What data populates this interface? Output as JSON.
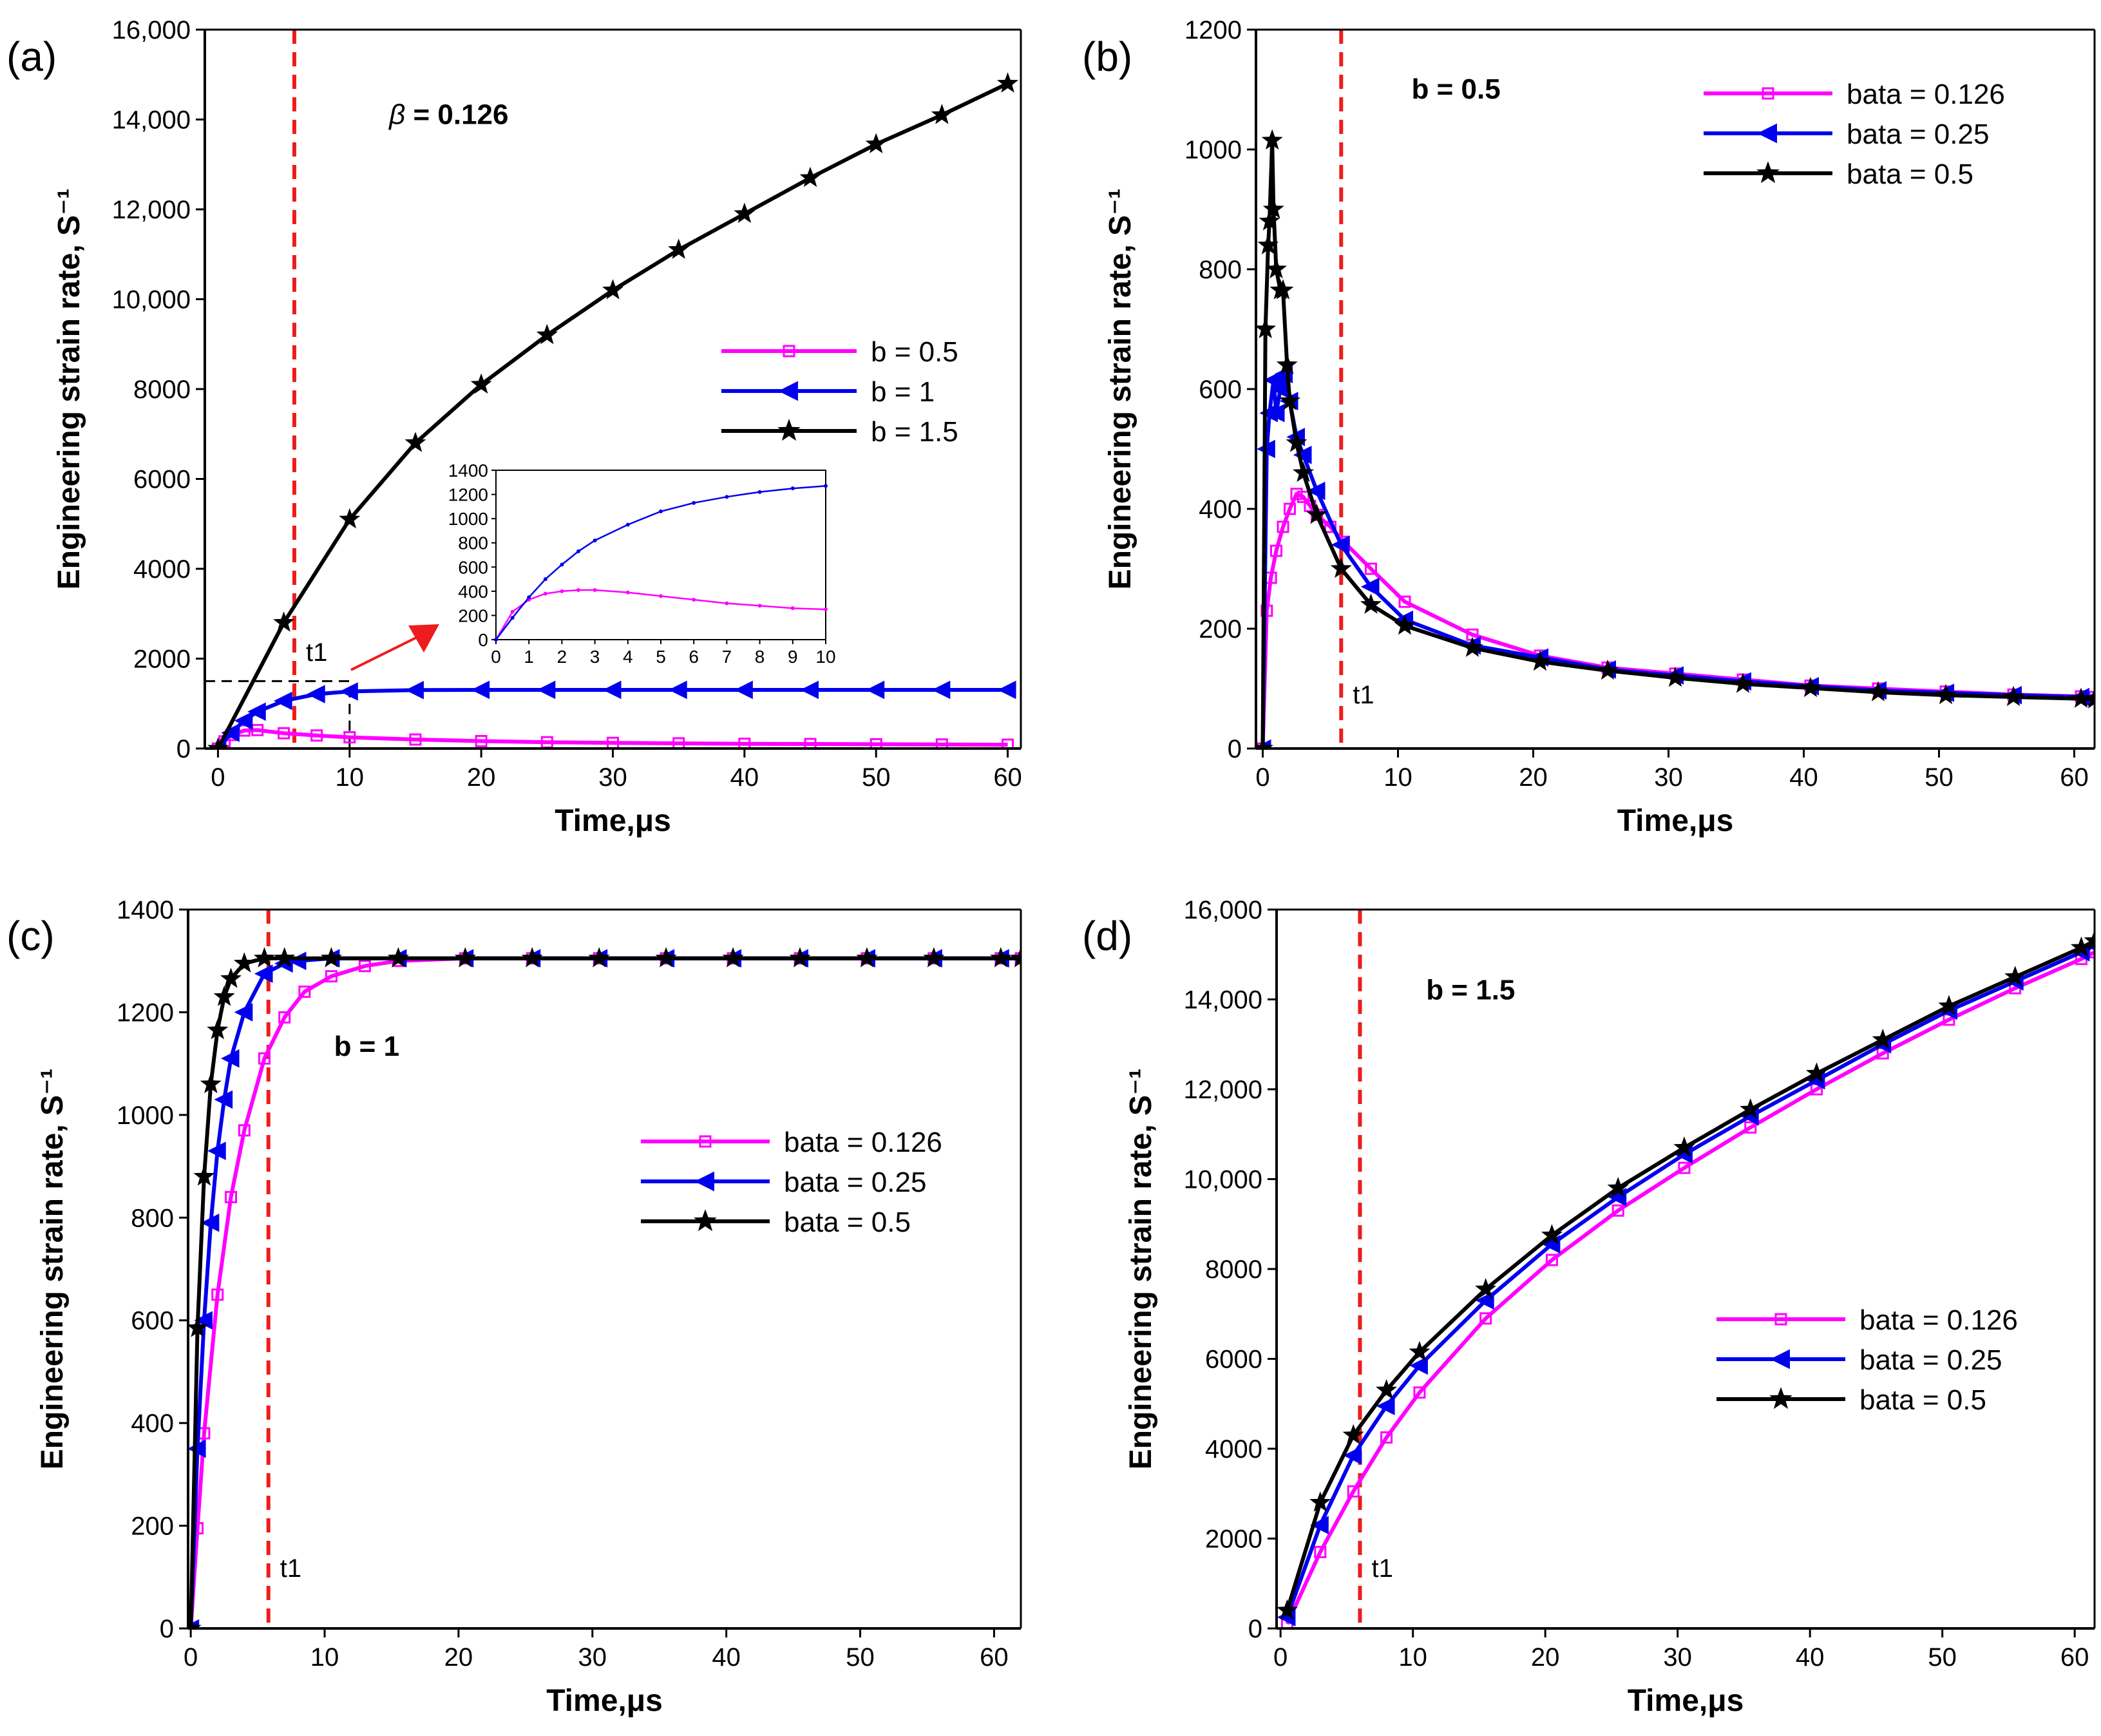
{
  "colors": {
    "magenta": "#ff00ff",
    "blue": "#0000ee",
    "black": "#000000",
    "red_dash": "#ee1c1c"
  },
  "chart_data": [
    {
      "type": "line",
      "panel_label": "(a)",
      "xlabel": "Time,μs",
      "ylabel": "Engineering strain rate, S⁻¹",
      "xlim": [
        -1,
        61
      ],
      "ylim": [
        0,
        16000
      ],
      "xticks": [
        0,
        10,
        20,
        30,
        40,
        50,
        60
      ],
      "xtick_labels": [
        "0",
        "10",
        "20",
        "30",
        "40",
        "50",
        "60"
      ],
      "yticks": [
        0,
        2000,
        4000,
        6000,
        8000,
        10000,
        12000,
        14000,
        16000
      ],
      "ytick_labels": [
        "0",
        "2000",
        "4000",
        "6000",
        "8000",
        "10,000",
        "12,000",
        "14,000",
        "16,000"
      ],
      "annotation": {
        "symbol": "β",
        "text": " = 0.126",
        "x": 13,
        "y": 13900
      },
      "t1": {
        "x": 5.8,
        "label": "t1"
      },
      "legend_position": "center-right",
      "series": [
        {
          "name": "b = 0.5",
          "color": "#ff00ff",
          "marker": "square",
          "x": [
            0,
            0.5,
            1,
            2,
            3,
            5,
            7.5,
            10,
            15,
            20,
            25,
            30,
            35,
            40,
            45,
            50,
            55,
            60
          ],
          "y": [
            0,
            160,
            300,
            400,
            410,
            340,
            290,
            250,
            200,
            165,
            140,
            125,
            115,
            105,
            100,
            95,
            90,
            85
          ]
        },
        {
          "name": "b = 1",
          "color": "#0000ee",
          "marker": "triangle-left",
          "x": [
            0,
            1,
            2,
            3,
            5,
            7.5,
            10,
            15,
            20,
            25,
            30,
            35,
            40,
            45,
            50,
            55,
            60
          ],
          "y": [
            0,
            350,
            620,
            820,
            1060,
            1210,
            1270,
            1300,
            1305,
            1305,
            1305,
            1305,
            1305,
            1305,
            1305,
            1305,
            1305
          ]
        },
        {
          "name": "b = 1.5",
          "color": "#000000",
          "marker": "star",
          "x": [
            0,
            5,
            10,
            15,
            20,
            25,
            30,
            35,
            40,
            45,
            50,
            55,
            60
          ],
          "y": [
            0,
            2800,
            5100,
            6800,
            8100,
            9200,
            10200,
            11100,
            11900,
            12700,
            13450,
            14100,
            14800
          ]
        }
      ],
      "inset": {
        "xlim": [
          0,
          10
        ],
        "ylim": [
          0,
          1400
        ],
        "xticks": [
          0,
          1,
          2,
          3,
          4,
          5,
          6,
          7,
          8,
          9,
          10
        ],
        "xtick_labels": [
          "0",
          "1",
          "2",
          "3",
          "4",
          "5",
          "6",
          "7",
          "8",
          "9",
          "10"
        ],
        "yticks": [
          0,
          200,
          400,
          600,
          800,
          1000,
          1200,
          1400
        ],
        "ytick_labels": [
          "0",
          "200",
          "400",
          "600",
          "800",
          "1000",
          "1200",
          "1400"
        ],
        "zoom_box": {
          "x0": -1,
          "x1": 10,
          "y1": 1500
        },
        "series": [
          {
            "color": "#ff00ff",
            "x": [
              0,
              0.5,
              1,
              1.5,
              2,
              2.5,
              3,
              4,
              5,
              6,
              7,
              8,
              9,
              10
            ],
            "y": [
              0,
              230,
              330,
              380,
              400,
              410,
              410,
              390,
              360,
              330,
              300,
              280,
              260,
              250
            ]
          },
          {
            "color": "#0000ee",
            "x": [
              0,
              0.5,
              1,
              1.5,
              2,
              2.5,
              3,
              4,
              5,
              6,
              7,
              8,
              9,
              10
            ],
            "y": [
              0,
              180,
              350,
              500,
              620,
              730,
              820,
              950,
              1060,
              1130,
              1180,
              1220,
              1250,
              1270
            ]
          }
        ]
      }
    },
    {
      "type": "line",
      "panel_label": "(b)",
      "xlabel": "Time,μs",
      "ylabel": "Engineering strain rate, S⁻¹",
      "xlim": [
        -0.5,
        61.5
      ],
      "ylim": [
        0,
        1200
      ],
      "xticks": [
        0,
        10,
        20,
        30,
        40,
        50,
        60
      ],
      "xtick_labels": [
        "0",
        "10",
        "20",
        "30",
        "40",
        "50",
        "60"
      ],
      "yticks": [
        0,
        200,
        400,
        600,
        800,
        1000,
        1200
      ],
      "ytick_labels": [
        "0",
        "200",
        "400",
        "600",
        "800",
        "1000",
        "1200"
      ],
      "annotation": {
        "symbol": "",
        "text": "b = 0.5",
        "x": 11,
        "y": 1085
      },
      "t1": {
        "x": 5.8,
        "label": "t1"
      },
      "legend_position": "top-right",
      "series": [
        {
          "name": "bata = 0.126",
          "color": "#ff00ff",
          "marker": "square",
          "x": [
            0,
            0.3,
            0.6,
            1,
            1.5,
            2,
            2.5,
            3,
            3.5,
            4,
            5,
            6,
            8,
            10.5,
            15.5,
            20.5,
            25.5,
            30.5,
            35.5,
            40.5,
            45.5,
            50.5,
            55.5,
            60.5,
            61.5
          ],
          "y": [
            0,
            230,
            285,
            330,
            370,
            400,
            425,
            420,
            405,
            390,
            370,
            345,
            300,
            245,
            190,
            155,
            135,
            125,
            115,
            105,
            100,
            95,
            90,
            87,
            86
          ]
        },
        {
          "name": "bata = 0.25",
          "color": "#0000ee",
          "marker": "triangle-left",
          "x": [
            0,
            0.3,
            0.5,
            0.8,
            1,
            1.3,
            1.6,
            2,
            2.5,
            3,
            4,
            5.8,
            8,
            10.5,
            15.5,
            20.5,
            25.5,
            30.5,
            35.5,
            40.5,
            45.5,
            50.5,
            55.5,
            60.5,
            61.5
          ],
          "y": [
            0,
            500,
            560,
            615,
            560,
            600,
            625,
            580,
            520,
            490,
            430,
            340,
            270,
            215,
            172,
            152,
            132,
            122,
            112,
            104,
            97,
            93,
            89,
            86,
            85
          ]
        },
        {
          "name": "bata = 0.5",
          "color": "#000000",
          "marker": "star",
          "x": [
            0,
            0.2,
            0.4,
            0.5,
            0.7,
            0.8,
            1,
            1.3,
            1.5,
            1.8,
            2,
            2.5,
            3,
            4,
            5.8,
            8,
            10.5,
            15.5,
            20.5,
            25.5,
            30.5,
            35.5,
            40.5,
            45.5,
            50.5,
            55.5,
            60.5,
            61.5
          ],
          "y": [
            0,
            700,
            840,
            880,
            1015,
            900,
            800,
            765,
            765,
            640,
            580,
            510,
            460,
            390,
            300,
            240,
            205,
            168,
            145,
            130,
            118,
            108,
            101,
            94,
            89,
            86,
            83,
            82
          ]
        }
      ]
    },
    {
      "type": "line",
      "panel_label": "(c)",
      "xlabel": "Time,μs",
      "ylabel": "Engineering strain rate, S⁻¹",
      "xlim": [
        -0.2,
        62
      ],
      "ylim": [
        0,
        1400
      ],
      "xticks": [
        0,
        10,
        20,
        30,
        40,
        50,
        60
      ],
      "xtick_labels": [
        "0",
        "10",
        "20",
        "30",
        "40",
        "50",
        "60"
      ],
      "yticks": [
        0,
        200,
        400,
        600,
        800,
        1000,
        1200,
        1400
      ],
      "ytick_labels": [
        "0",
        "200",
        "400",
        "600",
        "800",
        "1000",
        "1200",
        "1400"
      ],
      "annotation": {
        "symbol": "",
        "text": "b = 1",
        "x": 10.7,
        "y": 1115
      },
      "t1": {
        "x": 5.8,
        "label": "t1"
      },
      "legend_position": "center-right",
      "series": [
        {
          "name": "bata = 0.126",
          "color": "#ff00ff",
          "marker": "square",
          "x": [
            0,
            0.5,
            1,
            2,
            3,
            4,
            5.5,
            7,
            8.5,
            10.5,
            13,
            15.5,
            20.5,
            25.5,
            30.5,
            35.5,
            40.5,
            45.5,
            50.5,
            55.5,
            60.5,
            62
          ],
          "y": [
            0,
            195,
            380,
            650,
            840,
            970,
            1110,
            1190,
            1240,
            1270,
            1290,
            1300,
            1305,
            1305,
            1305,
            1305,
            1305,
            1305,
            1305,
            1305,
            1305,
            1305
          ]
        },
        {
          "name": "bata = 0.25",
          "color": "#0000ee",
          "marker": "triangle-left",
          "x": [
            0,
            0.5,
            1,
            1.5,
            2,
            2.5,
            3,
            4,
            5.5,
            7,
            8,
            10.5,
            15.5,
            20.5,
            25.5,
            30.5,
            35.5,
            40.5,
            45.5,
            50.5,
            55.5,
            60.5,
            62
          ],
          "y": [
            0,
            350,
            600,
            790,
            930,
            1030,
            1110,
            1200,
            1275,
            1295,
            1300,
            1305,
            1305,
            1305,
            1305,
            1305,
            1305,
            1305,
            1305,
            1305,
            1305,
            1305,
            1305
          ]
        },
        {
          "name": "bata = 0.5",
          "color": "#000000",
          "marker": "star",
          "x": [
            0,
            0.5,
            1,
            1.5,
            2,
            2.5,
            3,
            4,
            5.5,
            7,
            10.5,
            15.5,
            20.5,
            25.5,
            30.5,
            35.5,
            40.5,
            45.5,
            50.5,
            55.5,
            60.5,
            62
          ],
          "y": [
            0,
            585,
            880,
            1060,
            1165,
            1230,
            1265,
            1295,
            1305,
            1305,
            1305,
            1305,
            1305,
            1305,
            1305,
            1305,
            1305,
            1305,
            1305,
            1305,
            1305,
            1305
          ]
        }
      ]
    },
    {
      "type": "line",
      "panel_label": "(d)",
      "xlabel": "Time,μs",
      "ylabel": "Engineering strain rate, S⁻¹",
      "xlim": [
        -0.3,
        61.5
      ],
      "ylim": [
        0,
        16000
      ],
      "xticks": [
        0,
        10,
        20,
        30,
        40,
        50,
        60
      ],
      "xtick_labels": [
        "0",
        "10",
        "20",
        "30",
        "40",
        "50",
        "60"
      ],
      "yticks": [
        0,
        2000,
        4000,
        6000,
        8000,
        10000,
        12000,
        14000,
        16000
      ],
      "ytick_labels": [
        "0",
        "2000",
        "4000",
        "6000",
        "8000",
        "10,000",
        "12,000",
        "14,000",
        "16,000"
      ],
      "annotation": {
        "symbol": "",
        "text": "b = 1.5",
        "x": 11,
        "y": 14000
      },
      "t1": {
        "x": 6,
        "label": "t1"
      },
      "legend_position": "center-right",
      "series": [
        {
          "name": "bata = 0.126",
          "color": "#ff00ff",
          "marker": "square",
          "x": [
            0.5,
            3,
            5.5,
            8,
            10.5,
            15.5,
            20.5,
            25.5,
            30.5,
            35.5,
            40.5,
            45.5,
            50.5,
            55.5,
            60.5,
            61.5
          ],
          "y": [
            100,
            1700,
            3050,
            4250,
            5250,
            6900,
            8200,
            9300,
            10250,
            11150,
            12000,
            12800,
            13550,
            14250,
            14900,
            15050
          ]
        },
        {
          "name": "bata = 0.25",
          "color": "#0000ee",
          "marker": "triangle-left",
          "x": [
            0.5,
            3,
            5.5,
            8,
            10.5,
            15.5,
            20.5,
            25.5,
            30.5,
            35.5,
            40.5,
            45.5,
            50.5,
            55.5,
            60.5,
            61.5
          ],
          "y": [
            250,
            2300,
            3850,
            4950,
            5850,
            7300,
            8550,
            9600,
            10550,
            11400,
            12200,
            13000,
            13750,
            14400,
            15050,
            15200
          ]
        },
        {
          "name": "bata = 0.5",
          "color": "#000000",
          "marker": "star",
          "x": [
            0.5,
            3,
            5.5,
            8,
            10.5,
            15.5,
            20.5,
            25.5,
            30.5,
            35.5,
            40.5,
            45.5,
            50.5,
            55.5,
            60.5,
            61.5
          ],
          "y": [
            400,
            2800,
            4300,
            5300,
            6150,
            7550,
            8750,
            9800,
            10700,
            11550,
            12350,
            13100,
            13850,
            14500,
            15150,
            15300
          ]
        }
      ]
    }
  ]
}
